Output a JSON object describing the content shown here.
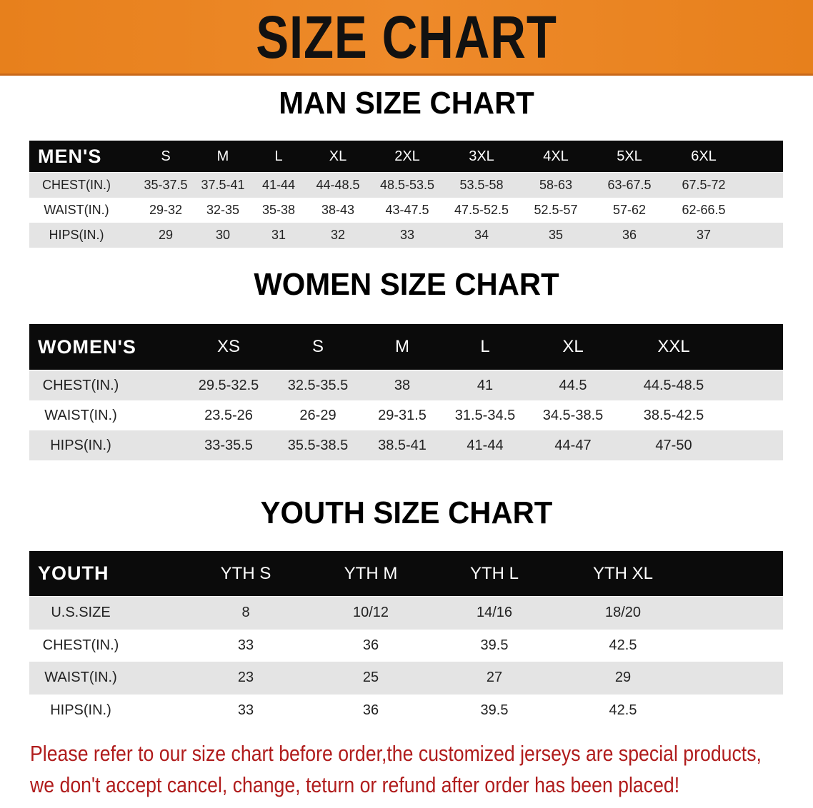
{
  "banner": {
    "title": "SIZE CHART",
    "color": "#e8801e"
  },
  "men": {
    "title": "MAN SIZE CHART",
    "header": [
      "MEN'S",
      "S",
      "M",
      "L",
      "XL",
      "2XL",
      "3XL",
      "4XL",
      "5XL",
      "6XL"
    ],
    "rows": [
      [
        "CHEST(IN.)",
        "35-37.5",
        "37.5-41",
        "41-44",
        "44-48.5",
        "48.5-53.5",
        "53.5-58",
        "58-63",
        "63-67.5",
        "67.5-72"
      ],
      [
        "WAIST(IN.)",
        "29-32",
        "32-35",
        "35-38",
        "38-43",
        "43-47.5",
        "47.5-52.5",
        "52.5-57",
        "57-62",
        "62-66.5"
      ],
      [
        "HIPS(IN.)",
        "29",
        "30",
        "31",
        "32",
        "33",
        "34",
        "35",
        "36",
        "37"
      ]
    ]
  },
  "women": {
    "title": "WOMEN SIZE CHART",
    "header": [
      "WOMEN'S",
      "XS",
      "S",
      "M",
      "L",
      "XL",
      "XXL"
    ],
    "rows": [
      [
        "CHEST(IN.)",
        "29.5-32.5",
        "32.5-35.5",
        "38",
        "41",
        "44.5",
        "44.5-48.5"
      ],
      [
        "WAIST(IN.)",
        "23.5-26",
        "26-29",
        "29-31.5",
        "31.5-34.5",
        "34.5-38.5",
        "38.5-42.5"
      ],
      [
        "HIPS(IN.)",
        "33-35.5",
        "35.5-38.5",
        "38.5-41",
        "41-44",
        "44-47",
        "47-50"
      ]
    ]
  },
  "youth": {
    "title": "YOUTH SIZE CHART",
    "header": [
      "YOUTH",
      "YTH S",
      "YTH M",
      "YTH L",
      "YTH XL"
    ],
    "rows": [
      [
        "U.S.SIZE",
        "8",
        "10/12",
        "14/16",
        "18/20"
      ],
      [
        "CHEST(IN.)",
        "33",
        "36",
        "39.5",
        "42.5"
      ],
      [
        "WAIST(IN.)",
        "23",
        "25",
        "27",
        "29"
      ],
      [
        "HIPS(IN.)",
        "33",
        "36",
        "39.5",
        "42.5"
      ]
    ]
  },
  "note": {
    "line1": "Please refer to our size chart before order,the customized jerseys are special products,",
    "line2": "we don't accept cancel, change, teturn or refund after order has been placed!",
    "color": "#b01c1c"
  }
}
